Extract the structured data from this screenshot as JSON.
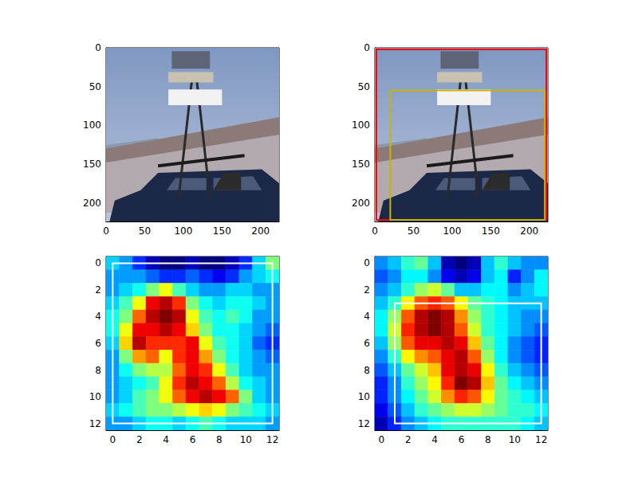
{
  "chart_data": [
    {
      "type": "image",
      "xlim": [
        0,
        224
      ],
      "ylim": [
        224,
        0
      ],
      "xticks": [
        0,
        50,
        100,
        150,
        200
      ],
      "yticks": [
        0,
        50,
        100,
        150,
        200
      ]
    },
    {
      "type": "image",
      "xlim": [
        0,
        224
      ],
      "ylim": [
        224,
        0
      ],
      "xticks": [
        0,
        50,
        100,
        150,
        200
      ],
      "yticks": [
        0,
        50,
        100,
        150,
        200
      ],
      "boxes": [
        {
          "x": [
            2,
            222
          ],
          "y": [
            2,
            222
          ],
          "color": "#ff0000"
        },
        {
          "x": [
            20,
            220
          ],
          "y": [
            55,
            222
          ],
          "color": "#c8b400"
        }
      ]
    },
    {
      "type": "heatmap",
      "xlim": [
        -0.5,
        12.5
      ],
      "ylim": [
        12.5,
        -0.5
      ],
      "xticks": [
        0,
        2,
        4,
        6,
        8,
        10,
        12
      ],
      "yticks": [
        0,
        2,
        4,
        6,
        8,
        10,
        12
      ],
      "x": [
        0,
        1,
        2,
        3,
        4,
        5,
        6,
        7,
        8,
        9,
        10,
        11,
        12
      ],
      "y": [
        0,
        1,
        2,
        3,
        4,
        5,
        6,
        7,
        8,
        9,
        10,
        11,
        12
      ],
      "cells": [
        [
          0.35,
          0.3,
          0.2,
          0.1,
          0.05,
          0.05,
          0.1,
          0.05,
          0.05,
          0.1,
          0.2,
          0.35,
          0.5
        ],
        [
          0.3,
          0.3,
          0.3,
          0.25,
          0.2,
          0.2,
          0.25,
          0.2,
          0.15,
          0.2,
          0.3,
          0.35,
          0.4
        ],
        [
          0.3,
          0.35,
          0.4,
          0.5,
          0.6,
          0.45,
          0.35,
          0.3,
          0.3,
          0.35,
          0.35,
          0.3,
          0.3
        ],
        [
          0.35,
          0.45,
          0.6,
          0.85,
          0.9,
          0.8,
          0.5,
          0.4,
          0.35,
          0.4,
          0.4,
          0.35,
          0.3
        ],
        [
          0.4,
          0.5,
          0.75,
          0.9,
          0.95,
          0.9,
          0.6,
          0.45,
          0.4,
          0.45,
          0.4,
          0.3,
          0.3
        ],
        [
          0.4,
          0.6,
          0.85,
          0.85,
          0.9,
          0.85,
          0.65,
          0.5,
          0.4,
          0.4,
          0.35,
          0.3,
          0.25
        ],
        [
          0.35,
          0.65,
          0.9,
          0.8,
          0.8,
          0.8,
          0.85,
          0.6,
          0.45,
          0.4,
          0.35,
          0.25,
          0.2
        ],
        [
          0.3,
          0.5,
          0.7,
          0.75,
          0.6,
          0.8,
          0.85,
          0.7,
          0.5,
          0.4,
          0.35,
          0.3,
          0.25
        ],
        [
          0.3,
          0.4,
          0.5,
          0.55,
          0.55,
          0.75,
          0.85,
          0.8,
          0.6,
          0.45,
          0.35,
          0.3,
          0.3
        ],
        [
          0.3,
          0.35,
          0.4,
          0.45,
          0.6,
          0.8,
          0.9,
          0.85,
          0.75,
          0.55,
          0.4,
          0.35,
          0.3
        ],
        [
          0.3,
          0.35,
          0.45,
          0.5,
          0.6,
          0.75,
          0.85,
          0.9,
          0.85,
          0.75,
          0.5,
          0.35,
          0.3
        ],
        [
          0.35,
          0.4,
          0.45,
          0.5,
          0.5,
          0.55,
          0.6,
          0.65,
          0.6,
          0.5,
          0.45,
          0.4,
          0.35
        ],
        [
          0.3,
          0.3,
          0.35,
          0.4,
          0.4,
          0.35,
          0.4,
          0.45,
          0.4,
          0.35,
          0.35,
          0.35,
          0.3
        ]
      ],
      "boxes": [
        {
          "x": [
            0,
            12
          ],
          "y": [
            0,
            12
          ],
          "color": "#ffffff"
        }
      ]
    },
    {
      "type": "heatmap",
      "xlim": [
        -0.5,
        12.5
      ],
      "ylim": [
        12.5,
        -0.5
      ],
      "xticks": [
        0,
        2,
        4,
        6,
        8,
        10,
        12
      ],
      "yticks": [
        0,
        2,
        4,
        6,
        8,
        10,
        12
      ],
      "x": [
        0,
        1,
        2,
        3,
        4,
        5,
        6,
        7,
        8,
        9,
        10,
        11,
        12
      ],
      "y": [
        0,
        1,
        2,
        3,
        4,
        5,
        6,
        7,
        8,
        9,
        10,
        11,
        12
      ],
      "cells": [
        [
          0.3,
          0.35,
          0.45,
          0.5,
          0.35,
          0.1,
          0.05,
          0.1,
          0.35,
          0.45,
          0.35,
          0.3,
          0.3
        ],
        [
          0.25,
          0.3,
          0.4,
          0.4,
          0.3,
          0.15,
          0.1,
          0.15,
          0.35,
          0.4,
          0.2,
          0.3,
          0.4
        ],
        [
          0.3,
          0.35,
          0.45,
          0.55,
          0.6,
          0.5,
          0.35,
          0.35,
          0.4,
          0.4,
          0.3,
          0.35,
          0.4
        ],
        [
          0.35,
          0.45,
          0.65,
          0.8,
          0.85,
          0.8,
          0.65,
          0.5,
          0.45,
          0.4,
          0.35,
          0.35,
          0.35
        ],
        [
          0.4,
          0.55,
          0.8,
          0.95,
          1.0,
          0.95,
          0.75,
          0.55,
          0.45,
          0.4,
          0.35,
          0.3,
          0.3
        ],
        [
          0.4,
          0.6,
          0.85,
          0.95,
          1.0,
          0.95,
          0.8,
          0.6,
          0.45,
          0.4,
          0.35,
          0.3,
          0.25
        ],
        [
          0.35,
          0.55,
          0.8,
          0.9,
          0.9,
          0.95,
          0.9,
          0.7,
          0.5,
          0.4,
          0.3,
          0.25,
          0.2
        ],
        [
          0.3,
          0.45,
          0.65,
          0.75,
          0.8,
          0.9,
          0.95,
          0.8,
          0.55,
          0.4,
          0.3,
          0.25,
          0.2
        ],
        [
          0.25,
          0.35,
          0.5,
          0.6,
          0.7,
          0.9,
          0.95,
          0.9,
          0.65,
          0.45,
          0.35,
          0.3,
          0.25
        ],
        [
          0.2,
          0.3,
          0.45,
          0.55,
          0.65,
          0.85,
          1.0,
          0.95,
          0.7,
          0.5,
          0.4,
          0.35,
          0.3
        ],
        [
          0.2,
          0.3,
          0.4,
          0.5,
          0.6,
          0.75,
          0.85,
          0.8,
          0.65,
          0.5,
          0.45,
          0.4,
          0.35
        ],
        [
          0.15,
          0.25,
          0.35,
          0.45,
          0.5,
          0.55,
          0.6,
          0.6,
          0.55,
          0.5,
          0.45,
          0.45,
          0.4
        ],
        [
          0.1,
          0.2,
          0.3,
          0.35,
          0.4,
          0.45,
          0.45,
          0.45,
          0.45,
          0.45,
          0.45,
          0.4,
          0.35
        ]
      ],
      "boxes": [
        {
          "x": [
            1,
            12
          ],
          "y": [
            3,
            12
          ],
          "color": "#ffffff"
        }
      ]
    }
  ]
}
